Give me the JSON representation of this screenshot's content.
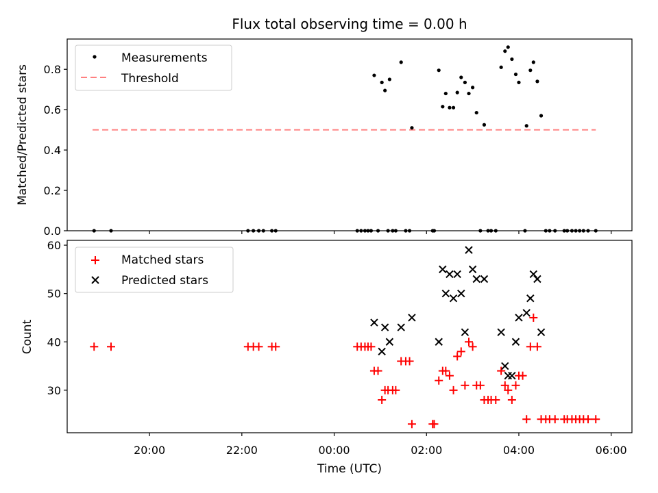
{
  "chart_data": [
    {
      "type": "scatter",
      "title": "Flux total observing time = 0.00 h",
      "xlabel": "",
      "ylabel": "Matched/Predicted stars",
      "ylim": [
        0,
        0.95
      ],
      "yticks": [
        "0.0",
        "0.2",
        "0.4",
        "0.6",
        "0.8"
      ],
      "ytick_values": [
        0,
        0.2,
        0.4,
        0.6,
        0.8
      ],
      "legend": {
        "placement": "top-left",
        "entries": [
          "Measurements",
          "Threshold"
        ]
      },
      "threshold": {
        "name": "Threshold",
        "value": 0.5,
        "x_range": [
          "18:46",
          "05:40"
        ],
        "color": "#ff8080"
      },
      "series": [
        {
          "name": "Measurements",
          "color": "#000000",
          "points": [
            [
              "18:48",
              0
            ],
            [
              "19:10",
              0
            ],
            [
              "22:08",
              0
            ],
            [
              "22:15",
              0
            ],
            [
              "22:22",
              0
            ],
            [
              "22:28",
              0
            ],
            [
              "22:39",
              0
            ],
            [
              "22:44",
              0
            ],
            [
              "00:30",
              0
            ],
            [
              "00:35",
              0
            ],
            [
              "00:40",
              0
            ],
            [
              "00:44",
              0
            ],
            [
              "00:48",
              0
            ],
            [
              "00:57",
              0
            ],
            [
              "01:10",
              0
            ],
            [
              "01:16",
              0
            ],
            [
              "01:20",
              0
            ],
            [
              "01:33",
              0
            ],
            [
              "01:38",
              0
            ],
            [
              "02:08",
              0
            ],
            [
              "02:10",
              0
            ],
            [
              "03:10",
              0
            ],
            [
              "03:20",
              0
            ],
            [
              "03:24",
              0
            ],
            [
              "03:30",
              0
            ],
            [
              "04:08",
              0
            ],
            [
              "04:35",
              0
            ],
            [
              "04:40",
              0
            ],
            [
              "04:47",
              0
            ],
            [
              "04:59",
              0
            ],
            [
              "05:03",
              0
            ],
            [
              "05:09",
              0
            ],
            [
              "05:14",
              0
            ],
            [
              "05:19",
              0
            ],
            [
              "05:24",
              0
            ],
            [
              "05:30",
              0
            ],
            [
              "05:40",
              0
            ],
            [
              "00:52",
              0.77
            ],
            [
              "01:02",
              0.735
            ],
            [
              "01:06",
              0.695
            ],
            [
              "01:12",
              0.75
            ],
            [
              "01:27",
              0.835
            ],
            [
              "01:41",
              0.51
            ],
            [
              "02:16",
              0.795
            ],
            [
              "02:21",
              0.615
            ],
            [
              "02:25",
              0.68
            ],
            [
              "02:30",
              0.61
            ],
            [
              "02:35",
              0.61
            ],
            [
              "02:40",
              0.685
            ],
            [
              "02:45",
              0.76
            ],
            [
              "02:50",
              0.735
            ],
            [
              "02:55",
              0.68
            ],
            [
              "03:00",
              0.71
            ],
            [
              "03:05",
              0.585
            ],
            [
              "03:15",
              0.525
            ],
            [
              "03:37",
              0.81
            ],
            [
              "03:42",
              0.89
            ],
            [
              "03:46",
              0.91
            ],
            [
              "03:51",
              0.85
            ],
            [
              "03:56",
              0.775
            ],
            [
              "04:00",
              0.735
            ],
            [
              "04:10",
              0.52
            ],
            [
              "04:15",
              0.795
            ],
            [
              "04:19",
              0.835
            ],
            [
              "04:24",
              0.74
            ],
            [
              "04:29",
              0.57
            ]
          ]
        }
      ]
    },
    {
      "type": "scatter",
      "title": "",
      "xlabel": "Time (UTC)",
      "ylabel": "Count",
      "ylim": [
        21.2,
        61
      ],
      "xlim": [
        "18:13",
        "06:27"
      ],
      "yticks": [
        "30",
        "40",
        "50",
        "60"
      ],
      "ytick_values": [
        30,
        40,
        50,
        60
      ],
      "xticks": [
        "20:00",
        "22:00",
        "00:00",
        "02:00",
        "04:00",
        "06:00"
      ],
      "legend": {
        "placement": "top-left",
        "entries": [
          "Matched stars",
          "Predicted stars"
        ]
      },
      "series": [
        {
          "name": "Matched stars",
          "marker": "+",
          "color": "#ff0000",
          "points": [
            [
              "18:48",
              39
            ],
            [
              "19:10",
              39
            ],
            [
              "22:08",
              39
            ],
            [
              "22:15",
              39
            ],
            [
              "22:22",
              39
            ],
            [
              "22:39",
              39
            ],
            [
              "22:44",
              39
            ],
            [
              "00:30",
              39
            ],
            [
              "00:35",
              39
            ],
            [
              "00:40",
              39
            ],
            [
              "00:44",
              39
            ],
            [
              "00:48",
              39
            ],
            [
              "00:52",
              34
            ],
            [
              "00:57",
              34
            ],
            [
              "01:02",
              28
            ],
            [
              "01:06",
              30
            ],
            [
              "01:10",
              30
            ],
            [
              "01:16",
              30
            ],
            [
              "01:20",
              30
            ],
            [
              "01:27",
              36
            ],
            [
              "01:33",
              36
            ],
            [
              "01:38",
              36
            ],
            [
              "01:41",
              23
            ],
            [
              "02:08",
              23
            ],
            [
              "02:10",
              23
            ],
            [
              "02:16",
              32
            ],
            [
              "02:21",
              34
            ],
            [
              "02:25",
              34
            ],
            [
              "02:30",
              33
            ],
            [
              "02:35",
              30
            ],
            [
              "02:40",
              37
            ],
            [
              "02:45",
              38
            ],
            [
              "02:50",
              31
            ],
            [
              "02:55",
              40
            ],
            [
              "03:00",
              39
            ],
            [
              "03:05",
              31
            ],
            [
              "03:10",
              31
            ],
            [
              "03:15",
              28
            ],
            [
              "03:20",
              28
            ],
            [
              "03:24",
              28
            ],
            [
              "03:30",
              28
            ],
            [
              "03:37",
              34
            ],
            [
              "03:42",
              31
            ],
            [
              "03:46",
              30
            ],
            [
              "03:51",
              28
            ],
            [
              "03:56",
              31
            ],
            [
              "04:00",
              33
            ],
            [
              "04:05",
              33
            ],
            [
              "04:10",
              24
            ],
            [
              "04:15",
              39
            ],
            [
              "04:19",
              45
            ],
            [
              "04:24",
              39
            ],
            [
              "04:29",
              24
            ],
            [
              "04:35",
              24
            ],
            [
              "04:40",
              24
            ],
            [
              "04:47",
              24
            ],
            [
              "04:59",
              24
            ],
            [
              "05:03",
              24
            ],
            [
              "05:09",
              24
            ],
            [
              "05:14",
              24
            ],
            [
              "05:19",
              24
            ],
            [
              "05:24",
              24
            ],
            [
              "05:30",
              24
            ],
            [
              "05:40",
              24
            ]
          ]
        },
        {
          "name": "Predicted stars",
          "marker": "x",
          "color": "#000000",
          "points": [
            [
              "00:52",
              44
            ],
            [
              "01:02",
              38
            ],
            [
              "01:06",
              43
            ],
            [
              "01:12",
              40
            ],
            [
              "01:27",
              43
            ],
            [
              "01:41",
              45
            ],
            [
              "02:16",
              40
            ],
            [
              "02:21",
              55
            ],
            [
              "02:25",
              50
            ],
            [
              "02:30",
              54
            ],
            [
              "02:35",
              49
            ],
            [
              "02:40",
              54
            ],
            [
              "02:45",
              50
            ],
            [
              "02:50",
              42
            ],
            [
              "02:55",
              59
            ],
            [
              "03:00",
              55
            ],
            [
              "03:05",
              53
            ],
            [
              "03:15",
              53
            ],
            [
              "03:37",
              42
            ],
            [
              "03:42",
              35
            ],
            [
              "03:46",
              33
            ],
            [
              "03:51",
              33
            ],
            [
              "03:56",
              40
            ],
            [
              "04:00",
              45
            ],
            [
              "04:10",
              46
            ],
            [
              "04:15",
              49
            ],
            [
              "04:19",
              54
            ],
            [
              "04:24",
              53
            ],
            [
              "04:29",
              42
            ]
          ]
        }
      ]
    }
  ]
}
